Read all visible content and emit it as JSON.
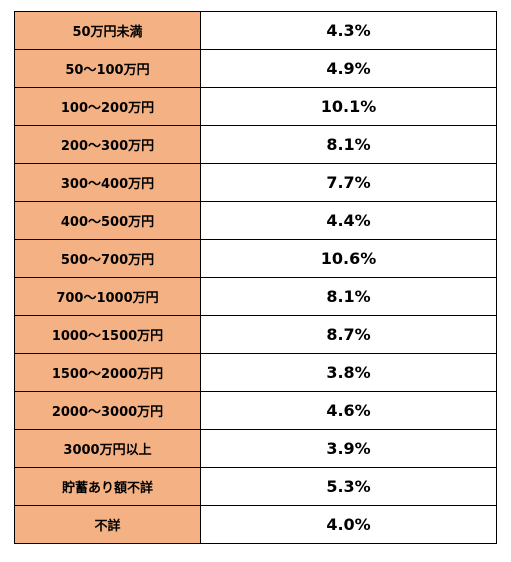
{
  "table": {
    "rows": [
      [
        "50万円未満",
        "4.3%"
      ],
      [
        "50～100万円",
        "4.9%"
      ],
      [
        "100～200万円",
        "10.1%"
      ],
      [
        "200～300万円",
        "8.1%"
      ],
      [
        "300～400万円",
        "7.7%"
      ],
      [
        "400～500万円",
        "4.4%"
      ],
      [
        "500～700万円",
        "10.6%"
      ],
      [
        "700～1000万円",
        "8.1%"
      ],
      [
        "1000～1500万円",
        "8.7%"
      ],
      [
        "1500～2000万円",
        "3.8%"
      ],
      [
        "2000～3000万円",
        "4.6%"
      ],
      [
        "3000万円以上",
        "3.9%"
      ],
      [
        "貯蓄あり額不詳",
        "5.3%"
      ],
      [
        "不詳",
        "4.0%"
      ]
    ]
  }
}
